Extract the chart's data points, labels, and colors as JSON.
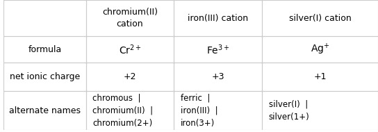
{
  "col_headers": [
    "chromium(II)\ncation",
    "iron(III) cation",
    "silver(I) cation"
  ],
  "row_headers": [
    "formula",
    "net ionic charge",
    "alternate names"
  ],
  "cells": [
    [
      "$\\mathrm{Cr}^{2+}$",
      "$\\mathrm{Fe}^{3+}$",
      "$\\mathrm{Ag}^{+}$"
    ],
    [
      "+2",
      "+3",
      "+1"
    ],
    [
      "chromous  |\nchromium(II)  |\nchromium(2+)",
      "ferric  |\niron(III)  |\niron(3+)",
      "silver(I)  |\nsilver(1+)"
    ]
  ],
  "bg_color": "#ffffff",
  "text_color": "#000000",
  "line_color": "#cccccc",
  "font_size": 9,
  "header_font_size": 9
}
